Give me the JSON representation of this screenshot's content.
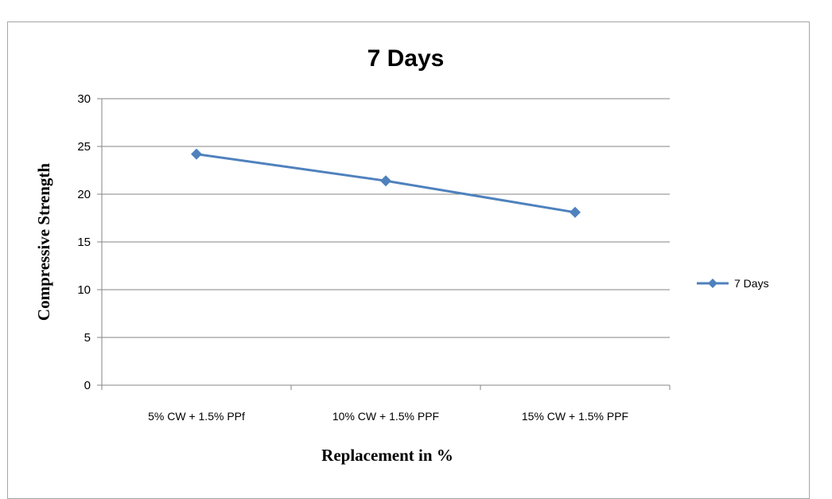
{
  "chart_data": {
    "type": "line",
    "title": "7 Days",
    "xlabel": "Replacement in %",
    "ylabel": "Compressive  Strength",
    "categories": [
      "5% CW + 1.5% PPf",
      "10% CW + 1.5% PPF",
      "15% CW + 1.5% PPF"
    ],
    "series": [
      {
        "name": "7 Days",
        "values": [
          24.2,
          21.4,
          18.1
        ],
        "color": "#4f81bd"
      }
    ],
    "ylim": [
      0,
      30
    ],
    "yticks": [
      0,
      5,
      10,
      15,
      20,
      25,
      30
    ],
    "grid": true,
    "legend": "right",
    "marker": "diamond"
  }
}
